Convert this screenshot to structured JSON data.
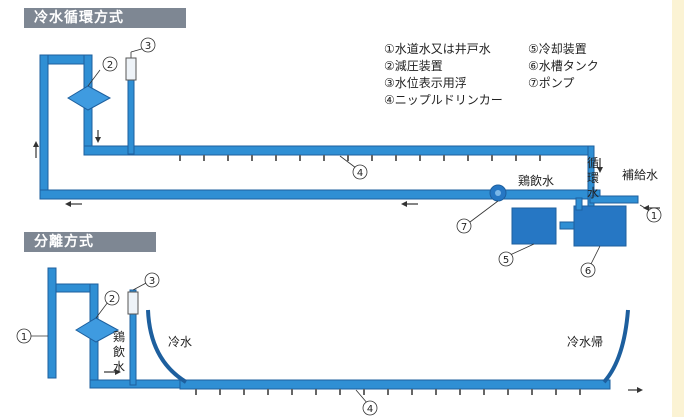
{
  "sections": {
    "circulation_title": "冷水循環方式",
    "separation_title": "分離方式"
  },
  "legend": {
    "items": [
      "①水道水又は井戸水",
      "②減圧装置",
      "③水位表示用浮",
      "④ニップルドリンカー",
      "⑤冷却装置",
      "⑥水槽タンク",
      "⑦ポンプ"
    ]
  },
  "labels": {
    "circulating_water": "循環水",
    "makeup_water": "補給水",
    "drinking_water": "鶏飲水",
    "drinking_water_vertical": "鶏飲水",
    "cold_water": "冷水",
    "cold_water_return": "冷水帰"
  },
  "markers": {
    "m1": "①",
    "m2": "②",
    "m3": "③",
    "m4": "④",
    "m5": "⑤",
    "m6": "⑥",
    "m7": "⑦"
  },
  "colors": {
    "pipe": "#2f8fd4",
    "pipe_dark": "#1d5f9e",
    "tank": "#2677c4",
    "banner": "#7e8793"
  }
}
